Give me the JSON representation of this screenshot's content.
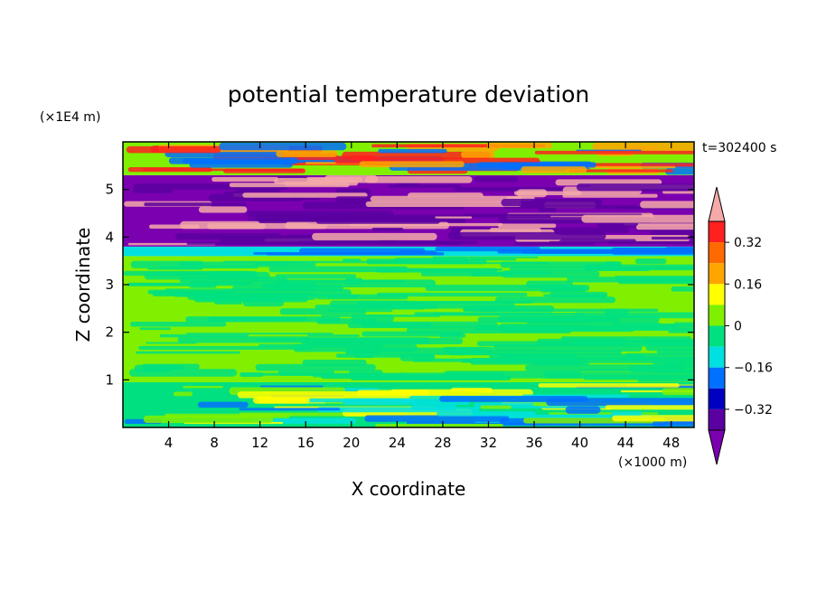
{
  "chart_data": {
    "type": "heatmap",
    "title": "potential temperature deviation",
    "xlabel": "X coordinate",
    "ylabel": "Z coordinate",
    "x_unit_label": "(×1000 m)",
    "y_unit_label": "(×1E4 m)",
    "time_label": "t=302400 s",
    "xlim": [
      0,
      50
    ],
    "ylim": [
      0,
      6
    ],
    "x_ticks": [
      4,
      8,
      12,
      16,
      20,
      24,
      28,
      32,
      36,
      40,
      44,
      48
    ],
    "y_ticks": [
      1,
      2,
      3,
      4,
      5
    ],
    "colorbar": {
      "levels": [
        -0.4,
        -0.32,
        -0.24,
        -0.16,
        -0.08,
        0,
        0.08,
        0.16,
        0.24,
        0.32,
        0.4
      ],
      "tick_labels": [
        "0.32",
        "0.16",
        "0",
        "−0.16",
        "−0.32"
      ],
      "tick_values": [
        0.32,
        0.16,
        0,
        -0.16,
        -0.32
      ],
      "colors_top_to_bottom": [
        "#f5a9a9",
        "#ff2020",
        "#ff6a00",
        "#ffa500",
        "#ffff00",
        "#80f000",
        "#00e080",
        "#00e0e0",
        "#0070ff",
        "#0000c0",
        "#5a00a0",
        "#7a00b0"
      ],
      "extends": "both"
    },
    "bands": [
      {
        "z": [
          0.0,
          0.95
        ],
        "dominant": "#00e080",
        "mix": [
          "#80f000",
          "#00e0e0",
          "#ffff00",
          "#0070ff"
        ]
      },
      {
        "z": [
          0.95,
          3.6
        ],
        "dominant": "#80f000",
        "mix": [
          "#00e080"
        ]
      },
      {
        "z": [
          3.6,
          3.8
        ],
        "dominant": "#00e0e0",
        "mix": [
          "#0070ff"
        ]
      },
      {
        "z": [
          3.8,
          5.3
        ],
        "dominant": "#7a00b0",
        "mix": [
          "#f5a9a9",
          "#5a00a0"
        ]
      },
      {
        "z": [
          5.3,
          6.0
        ],
        "dominant": "#80f000",
        "mix": [
          "#0070ff",
          "#ff2020",
          "#ffa500"
        ]
      }
    ]
  }
}
